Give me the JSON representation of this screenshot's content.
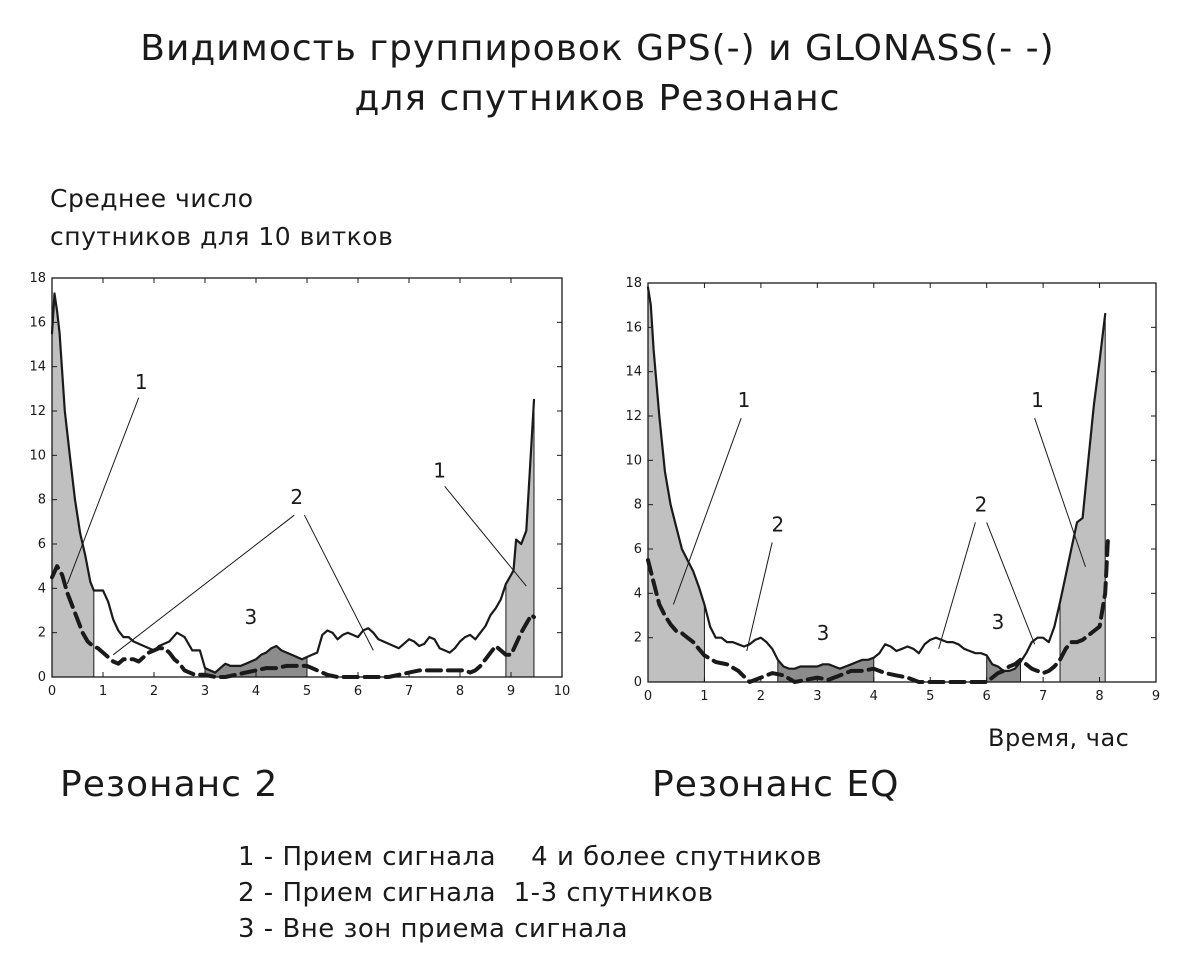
{
  "title": {
    "line1": "Видимость группировок GPS(-) и GLONASS(- -)",
    "line2": "для спутников Резонанс"
  },
  "ylabel": {
    "line1": "Среднее число",
    "line2": "спутников для 10 витков"
  },
  "xlabel": "Время, час",
  "legend": {
    "line1": "1 - Прием сигнала    4 и более спутников",
    "line2": "2 - Прием сигнала  1-3 спутников",
    "line3": "3 - Вне зон приема сигнала"
  },
  "colors": {
    "zone_good": "#c0c0c0",
    "zone_out": "#8c8c8c",
    "line": "#1a1a1a"
  },
  "chart_data": [
    {
      "type": "line",
      "subtitle": "Резонанс 2",
      "xlim": [
        0,
        10
      ],
      "ylim": [
        0,
        18
      ],
      "xticks": [
        0,
        1,
        2,
        3,
        4,
        5,
        6,
        7,
        8,
        9,
        10
      ],
      "yticks": [
        0,
        2,
        4,
        6,
        8,
        10,
        12,
        14,
        16,
        18
      ],
      "series": [
        {
          "style": "solid",
          "x": [
            0,
            0.05,
            0.1,
            0.15,
            0.25,
            0.35,
            0.45,
            0.55,
            0.65,
            0.75,
            0.82,
            0.9,
            1.0,
            1.1,
            1.2,
            1.3,
            1.4,
            1.5,
            1.6,
            1.7,
            1.8,
            1.9,
            2.0,
            2.1,
            2.2,
            2.3,
            2.45,
            2.6,
            2.75,
            2.9,
            3.0,
            3.1,
            3.2,
            3.3,
            3.4,
            3.5,
            3.6,
            3.7,
            3.8,
            3.9,
            4.0,
            4.1,
            4.2,
            4.3,
            4.4,
            4.5,
            4.6,
            4.7,
            4.8,
            4.9,
            5.0,
            5.1,
            5.2,
            5.3,
            5.4,
            5.5,
            5.6,
            5.7,
            5.8,
            5.9,
            6.0,
            6.1,
            6.2,
            6.3,
            6.4,
            6.5,
            6.6,
            6.7,
            6.8,
            6.9,
            7.0,
            7.1,
            7.2,
            7.3,
            7.4,
            7.5,
            7.6,
            7.7,
            7.8,
            7.9,
            8.0,
            8.1,
            8.2,
            8.3,
            8.4,
            8.5,
            8.6,
            8.7,
            8.8,
            8.9,
            9.0,
            9.05,
            9.1,
            9.2,
            9.3,
            9.4,
            9.45
          ],
          "y": [
            15.5,
            17.3,
            16.5,
            15.5,
            12.0,
            10.0,
            8.0,
            6.5,
            5.5,
            4.3,
            3.9,
            3.9,
            3.9,
            3.4,
            2.6,
            2.1,
            1.8,
            1.8,
            1.6,
            1.5,
            1.4,
            1.3,
            1.2,
            1.4,
            1.5,
            1.6,
            2.0,
            1.8,
            1.2,
            1.2,
            0.4,
            0.3,
            0.2,
            0.4,
            0.6,
            0.5,
            0.5,
            0.5,
            0.6,
            0.7,
            0.8,
            1.0,
            1.1,
            1.3,
            1.4,
            1.2,
            1.1,
            1.0,
            0.9,
            0.8,
            0.9,
            1.0,
            1.1,
            1.9,
            2.1,
            2.0,
            1.7,
            1.9,
            2.0,
            1.9,
            1.8,
            2.1,
            2.2,
            2.0,
            1.7,
            1.6,
            1.5,
            1.4,
            1.3,
            1.5,
            1.7,
            1.6,
            1.4,
            1.5,
            1.8,
            1.7,
            1.3,
            1.2,
            1.1,
            1.3,
            1.6,
            1.8,
            1.9,
            1.7,
            2.0,
            2.3,
            2.8,
            3.1,
            3.5,
            4.2,
            4.6,
            4.8,
            6.2,
            6.0,
            6.6,
            10.5,
            12.5
          ]
        },
        {
          "style": "dashed",
          "x": [
            0,
            0.1,
            0.2,
            0.3,
            0.4,
            0.5,
            0.6,
            0.7,
            0.8,
            0.9,
            1.0,
            1.1,
            1.2,
            1.3,
            1.4,
            1.5,
            1.6,
            1.7,
            1.8,
            1.9,
            2.0,
            2.1,
            2.2,
            2.3,
            2.4,
            2.5,
            2.6,
            2.8,
            3.0,
            3.2,
            3.4,
            3.6,
            3.8,
            4.0,
            4.2,
            4.4,
            4.6,
            4.8,
            5.0,
            5.2,
            5.4,
            5.6,
            5.8,
            6.0,
            6.2,
            6.4,
            6.6,
            6.8,
            7.0,
            7.2,
            7.4,
            7.6,
            7.8,
            8.0,
            8.1,
            8.2,
            8.3,
            8.4,
            8.5,
            8.6,
            8.7,
            8.8,
            8.9,
            9.0,
            9.1,
            9.2,
            9.3,
            9.4,
            9.45
          ],
          "y": [
            4.5,
            5.0,
            4.6,
            3.8,
            3.2,
            2.6,
            2.0,
            1.6,
            1.4,
            1.3,
            1.1,
            0.9,
            0.7,
            0.6,
            0.8,
            0.8,
            0.8,
            0.7,
            0.9,
            1.1,
            1.2,
            1.3,
            1.3,
            1.1,
            0.8,
            0.6,
            0.3,
            0.1,
            0.1,
            0.0,
            0.0,
            0.1,
            0.2,
            0.3,
            0.4,
            0.4,
            0.5,
            0.5,
            0.5,
            0.3,
            0.1,
            0.0,
            0.0,
            0.0,
            0.0,
            0.0,
            0.0,
            0.1,
            0.2,
            0.3,
            0.3,
            0.3,
            0.3,
            0.3,
            0.3,
            0.2,
            0.3,
            0.5,
            0.8,
            1.1,
            1.4,
            1.2,
            1.0,
            1.0,
            1.5,
            2.0,
            2.4,
            2.8,
            2.7
          ]
        }
      ],
      "shaded_good": [
        [
          0,
          0.82
        ],
        [
          8.9,
          9.45
        ]
      ],
      "shaded_out": [
        [
          3.0,
          5.0
        ]
      ],
      "annotations": [
        {
          "text": "1",
          "x": 1.75,
          "y": 13.0
        },
        {
          "text": "1",
          "x": 7.6,
          "y": 9.0
        },
        {
          "text": "2",
          "x": 4.8,
          "y": 7.8
        },
        {
          "text": "3",
          "x": 3.9,
          "y": 2.4
        }
      ],
      "leaders": [
        [
          [
            1.7,
            12.6
          ],
          [
            0.3,
            4.2
          ]
        ],
        [
          [
            7.7,
            8.6
          ],
          [
            9.3,
            4.1
          ]
        ],
        [
          [
            4.75,
            7.3
          ],
          [
            1.2,
            1.0
          ]
        ],
        [
          [
            4.95,
            7.3
          ],
          [
            6.3,
            1.2
          ]
        ]
      ]
    },
    {
      "type": "line",
      "subtitle": "Резонанс EQ",
      "xlim": [
        0,
        9
      ],
      "ylim": [
        0,
        18
      ],
      "xticks": [
        0,
        1,
        2,
        3,
        4,
        5,
        6,
        7,
        8,
        9
      ],
      "yticks": [
        0,
        2,
        4,
        6,
        8,
        10,
        12,
        14,
        16,
        18
      ],
      "series": [
        {
          "style": "solid",
          "x": [
            0,
            0.05,
            0.1,
            0.2,
            0.3,
            0.4,
            0.5,
            0.6,
            0.7,
            0.8,
            0.9,
            1.0,
            1.1,
            1.2,
            1.3,
            1.4,
            1.5,
            1.6,
            1.7,
            1.8,
            1.9,
            2.0,
            2.1,
            2.2,
            2.3,
            2.4,
            2.5,
            2.6,
            2.7,
            2.8,
            2.9,
            3.0,
            3.1,
            3.2,
            3.3,
            3.4,
            3.5,
            3.6,
            3.7,
            3.8,
            3.9,
            4.0,
            4.1,
            4.2,
            4.3,
            4.4,
            4.5,
            4.6,
            4.7,
            4.8,
            4.9,
            5.0,
            5.1,
            5.2,
            5.3,
            5.4,
            5.5,
            5.6,
            5.7,
            5.8,
            5.9,
            6.0,
            6.1,
            6.2,
            6.3,
            6.4,
            6.5,
            6.6,
            6.7,
            6.8,
            6.9,
            7.0,
            7.1,
            7.2,
            7.3,
            7.4,
            7.5,
            7.6,
            7.7,
            7.8,
            7.9,
            8.0,
            8.1
          ],
          "y": [
            17.8,
            17.0,
            15.0,
            12.0,
            9.5,
            8.0,
            7.0,
            6.0,
            5.5,
            5.0,
            4.3,
            3.5,
            2.5,
            2.0,
            2.0,
            1.8,
            1.8,
            1.7,
            1.6,
            1.7,
            1.9,
            2.0,
            1.8,
            1.5,
            1.0,
            0.7,
            0.6,
            0.6,
            0.7,
            0.7,
            0.7,
            0.7,
            0.8,
            0.8,
            0.7,
            0.6,
            0.7,
            0.8,
            0.9,
            1.0,
            1.0,
            1.1,
            1.3,
            1.7,
            1.6,
            1.4,
            1.5,
            1.6,
            1.5,
            1.3,
            1.7,
            1.9,
            2.0,
            1.9,
            1.8,
            1.8,
            1.7,
            1.5,
            1.4,
            1.3,
            1.3,
            1.2,
            0.8,
            0.7,
            0.5,
            0.5,
            0.6,
            0.9,
            1.3,
            1.8,
            2.0,
            2.0,
            1.8,
            2.5,
            3.6,
            4.8,
            6.0,
            7.2,
            7.4,
            10.0,
            12.5,
            14.5,
            16.6
          ]
        },
        {
          "style": "dashed",
          "x": [
            0,
            0.1,
            0.2,
            0.3,
            0.4,
            0.5,
            0.6,
            0.7,
            0.8,
            0.9,
            1.0,
            1.2,
            1.4,
            1.6,
            1.8,
            2.0,
            2.2,
            2.4,
            2.6,
            2.8,
            3.0,
            3.2,
            3.4,
            3.6,
            3.8,
            4.0,
            4.2,
            4.4,
            4.6,
            4.8,
            5.0,
            5.2,
            5.4,
            5.6,
            5.8,
            6.0,
            6.1,
            6.2,
            6.3,
            6.4,
            6.5,
            6.6,
            6.8,
            7.0,
            7.1,
            7.2,
            7.3,
            7.4,
            7.5,
            7.6,
            7.7,
            7.8,
            7.9,
            8.0,
            8.1,
            8.15
          ],
          "y": [
            5.5,
            4.5,
            3.5,
            3.0,
            2.6,
            2.3,
            2.2,
            2.0,
            1.8,
            1.5,
            1.2,
            0.9,
            0.8,
            0.5,
            0.0,
            0.2,
            0.4,
            0.3,
            0.0,
            0.1,
            0.2,
            0.1,
            0.3,
            0.5,
            0.5,
            0.6,
            0.4,
            0.3,
            0.2,
            0.0,
            0.0,
            0.0,
            0.0,
            0.0,
            0.0,
            0.0,
            0.2,
            0.4,
            0.5,
            0.7,
            0.8,
            1.0,
            0.6,
            0.4,
            0.5,
            0.7,
            1.0,
            1.5,
            1.8,
            1.8,
            1.9,
            2.1,
            2.3,
            2.5,
            4.0,
            6.5
          ]
        }
      ],
      "shaded_good": [
        [
          0,
          1.0
        ],
        [
          7.3,
          8.1
        ]
      ],
      "shaded_out": [
        [
          2.3,
          4.0
        ],
        [
          6.0,
          6.6
        ]
      ],
      "annotations": [
        {
          "text": "1",
          "x": 1.7,
          "y": 12.4
        },
        {
          "text": "1",
          "x": 6.9,
          "y": 12.4
        },
        {
          "text": "2",
          "x": 2.3,
          "y": 6.8
        },
        {
          "text": "2",
          "x": 5.9,
          "y": 7.7
        },
        {
          "text": "3",
          "x": 3.1,
          "y": 1.9
        },
        {
          "text": "3",
          "x": 6.2,
          "y": 2.4
        }
      ],
      "leaders": [
        [
          [
            1.65,
            11.9
          ],
          [
            0.45,
            3.5
          ]
        ],
        [
          [
            6.85,
            11.9
          ],
          [
            7.75,
            5.2
          ]
        ],
        [
          [
            2.2,
            6.3
          ],
          [
            1.75,
            1.4
          ]
        ],
        [
          [
            5.8,
            7.2
          ],
          [
            5.15,
            1.5
          ]
        ],
        [
          [
            6.0,
            7.2
          ],
          [
            6.85,
            1.7
          ]
        ]
      ]
    }
  ]
}
